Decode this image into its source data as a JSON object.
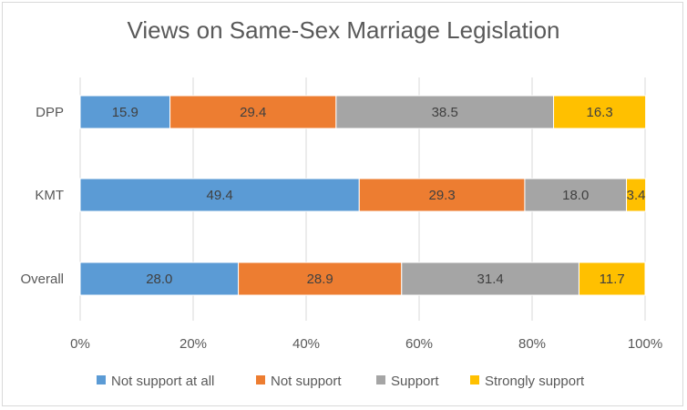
{
  "chart_data": {
    "type": "bar",
    "orientation": "horizontal",
    "stacked": true,
    "title": "Views on Same-Sex Marriage Legislation",
    "categories": [
      "DPP",
      "KMT",
      "Overall"
    ],
    "series": [
      {
        "name": "Not support at all",
        "color": "#5b9bd5",
        "values": [
          15.9,
          49.4,
          28.0
        ]
      },
      {
        "name": "Not support",
        "color": "#ed7d31",
        "values": [
          29.4,
          29.3,
          28.9
        ]
      },
      {
        "name": "Support",
        "color": "#a5a5a5",
        "values": [
          38.5,
          18.0,
          31.4
        ]
      },
      {
        "name": "Strongly support",
        "color": "#ffc000",
        "values": [
          16.3,
          3.4,
          11.7
        ]
      }
    ],
    "xlim": [
      0,
      100
    ],
    "xticks": [
      "0%",
      "20%",
      "40%",
      "60%",
      "80%",
      "100%"
    ],
    "grid": true,
    "legend": "bottom"
  }
}
